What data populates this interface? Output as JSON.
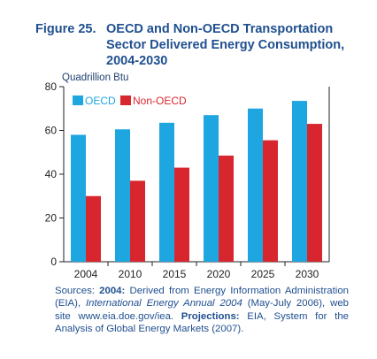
{
  "title": {
    "figure": "Figure 25.",
    "line1": "OECD and Non-OECD Transportation",
    "line2": "Sector Delivered Energy Consumption,",
    "line3": "2004-2030"
  },
  "sources": {
    "lead": "Sources: ",
    "b1": "2004:",
    "t1": " Derived from Energy Information Administration (EIA), ",
    "i1": "International Energy Annual 2004",
    "t2": " (May-July 2006), web site www.eia.doe.gov/iea. ",
    "b2": "Projections:",
    "t3": " EIA, System for the Analysis of Global Energy Markets (2007)."
  },
  "colors": {
    "oecd": "#1ea6e0",
    "non_oecd": "#d8262f",
    "axis": "#222222",
    "title": "#1f4f8f"
  },
  "chart_data": {
    "type": "bar",
    "title": "OECD and Non-OECD Transportation Sector Delivered Energy Consumption, 2004-2030",
    "ylabel": "Quadrillion Btu",
    "xlabel": "",
    "categories": [
      "2004",
      "2010",
      "2015",
      "2020",
      "2025",
      "2030"
    ],
    "series": [
      {
        "name": "OECD",
        "values": [
          58,
          60.5,
          63.5,
          67,
          70,
          73.5
        ]
      },
      {
        "name": "Non-OECD",
        "values": [
          30,
          37,
          43,
          48.5,
          55.5,
          63
        ]
      }
    ],
    "ylim": [
      0,
      80
    ],
    "yticks": [
      0,
      20,
      40,
      60,
      80
    ],
    "legend": "top-left",
    "grid": false
  }
}
